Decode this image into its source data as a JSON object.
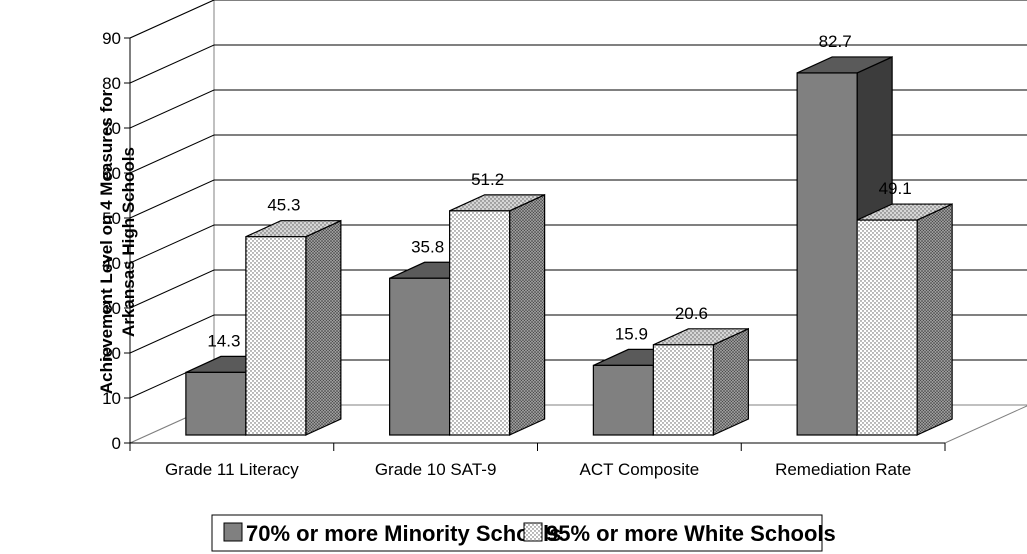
{
  "chart_data": {
    "type": "bar",
    "style": "3d-clustered-column",
    "ylabel": "Achievement Level on 4 Measures for Arkansas High Schools",
    "ylabel_lines": [
      "Achievement Level on 4 Measures for",
      "Arkansas High Schools"
    ],
    "xlabel": "",
    "ylim": [
      0,
      90
    ],
    "yticks": [
      "0",
      "10",
      "20",
      "30",
      "40",
      "50",
      "60",
      "70",
      "80",
      "90"
    ],
    "grid": true,
    "legend_position": "bottom",
    "categories": [
      "Grade 11 Literacy",
      "Grade 10 SAT-9",
      "ACT Composite",
      "Remediation Rate"
    ],
    "series": [
      {
        "name": "70% or more Minority Schools",
        "values": [
          14.3,
          35.8,
          15.9,
          82.7
        ],
        "labels": [
          "14.3",
          "35.8",
          "15.9",
          "82.7"
        ],
        "fill": "solid-gray",
        "color": "#808080"
      },
      {
        "name": "95% or more White Schools",
        "values": [
          45.3,
          51.2,
          20.6,
          49.1
        ],
        "labels": [
          "45.3",
          "51.2",
          "20.6",
          "49.1"
        ],
        "fill": "dotted",
        "color": "#ffffff"
      }
    ]
  }
}
